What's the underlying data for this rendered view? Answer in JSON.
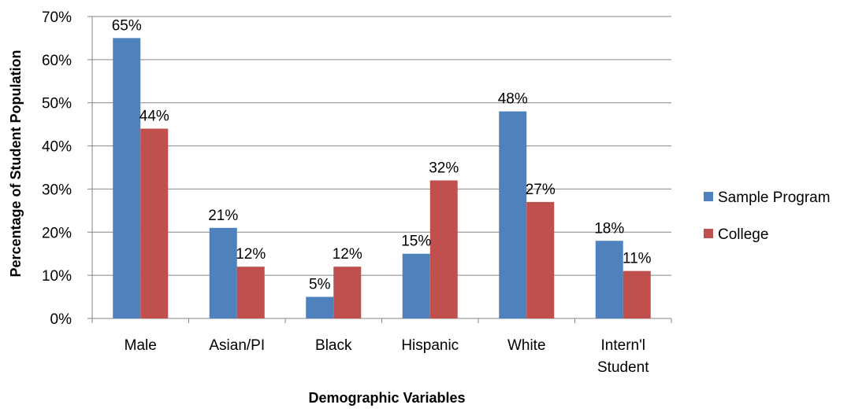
{
  "chart_data": {
    "type": "bar",
    "title": "",
    "xlabel": "Demographic Variables",
    "ylabel": "Percentage of Student Population",
    "ylim": [
      0,
      70
    ],
    "yticks": [
      0,
      10,
      20,
      30,
      40,
      50,
      60,
      70
    ],
    "ytick_format": "%",
    "grid": true,
    "legend_position": "right",
    "categories": [
      "Male",
      "Asian/PI",
      "Black",
      "Hispanic",
      "White",
      "Intern'l Student"
    ],
    "category_lines": [
      [
        "Male"
      ],
      [
        "Asian/PI"
      ],
      [
        "Black"
      ],
      [
        "Hispanic"
      ],
      [
        "White"
      ],
      [
        "Intern'l",
        "Student"
      ]
    ],
    "series": [
      {
        "name": "Sample Program",
        "color": "#4f81bd",
        "values": [
          65,
          21,
          5,
          15,
          48,
          18
        ],
        "labels": [
          "65%",
          "21%",
          "5%",
          "15%",
          "48%",
          "18%"
        ]
      },
      {
        "name": "College",
        "color": "#c0504d",
        "values": [
          44,
          12,
          12,
          32,
          27,
          11
        ],
        "labels": [
          "44%",
          "12%",
          "12%",
          "32%",
          "27%",
          "11%"
        ]
      }
    ]
  }
}
